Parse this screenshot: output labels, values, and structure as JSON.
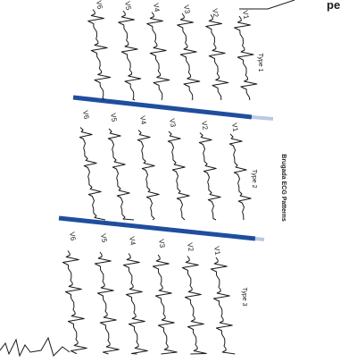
{
  "header": {
    "title_fragment": "pe"
  },
  "diagram": {
    "title": "Brugada ECG Patterns",
    "accent_color": "#1f4e9e",
    "ink_color": "#1a1a1a",
    "panels": [
      {
        "label": "Type 1",
        "leads": [
          "V1",
          "V2",
          "V3",
          "V4",
          "V5",
          "V6"
        ]
      },
      {
        "label": "Type 2",
        "leads": [
          "V1",
          "V2",
          "V3",
          "V4",
          "V5",
          "V6"
        ]
      },
      {
        "label": "Type 3",
        "leads": [
          "V1",
          "V2",
          "V3",
          "V4",
          "V5",
          "V6"
        ]
      }
    ]
  }
}
